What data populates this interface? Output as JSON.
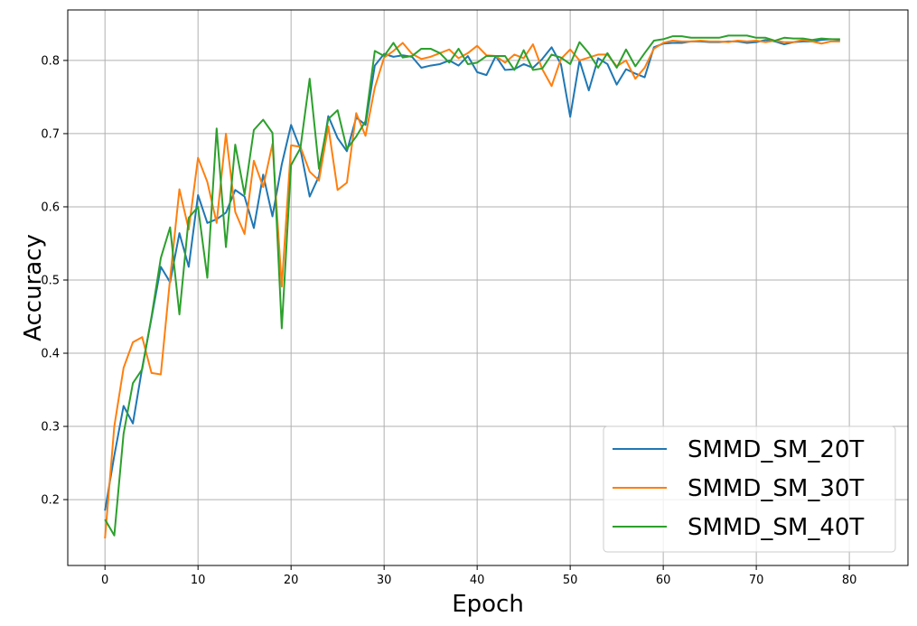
{
  "chart_data": {
    "type": "line",
    "title": "",
    "xlabel": "Epoch",
    "ylabel": "Accuracy",
    "xlim": [
      -4,
      86.3
    ],
    "ylim": [
      0.11,
      0.869
    ],
    "xticks": [
      "0",
      "10",
      "20",
      "30",
      "40",
      "50",
      "60",
      "70",
      "80"
    ],
    "yticks": [
      "0.2",
      "0.3",
      "0.4",
      "0.5",
      "0.6",
      "0.7",
      "0.8"
    ],
    "grid": true,
    "legend_position": "lower-right",
    "x": [
      0,
      1,
      2,
      3,
      4,
      5,
      6,
      7,
      8,
      9,
      10,
      11,
      12,
      13,
      14,
      15,
      16,
      17,
      18,
      19,
      20,
      21,
      22,
      23,
      24,
      25,
      26,
      27,
      28,
      29,
      30,
      31,
      32,
      33,
      34,
      35,
      36,
      37,
      38,
      39,
      40,
      41,
      42,
      43,
      44,
      45,
      46,
      47,
      48,
      49,
      50,
      51,
      52,
      53,
      54,
      55,
      56,
      57,
      58,
      59,
      60,
      61,
      62,
      63,
      64,
      65,
      66,
      67,
      68,
      69,
      70,
      71,
      72,
      73,
      74,
      75,
      76,
      77,
      78,
      79
    ],
    "series": [
      {
        "name": "SMMD_SM_20T",
        "color": "#1f77b4",
        "values": [
          0.185,
          0.26,
          0.328,
          0.304,
          0.38,
          0.448,
          0.518,
          0.497,
          0.564,
          0.518,
          0.616,
          0.578,
          0.583,
          0.592,
          0.623,
          0.614,
          0.571,
          0.644,
          0.587,
          0.658,
          0.712,
          0.679,
          0.614,
          0.642,
          0.724,
          0.694,
          0.676,
          0.722,
          0.712,
          0.793,
          0.809,
          0.805,
          0.807,
          0.805,
          0.79,
          0.793,
          0.795,
          0.8,
          0.793,
          0.806,
          0.784,
          0.78,
          0.806,
          0.787,
          0.788,
          0.795,
          0.79,
          0.802,
          0.818,
          0.795,
          0.723,
          0.8,
          0.759,
          0.803,
          0.795,
          0.767,
          0.788,
          0.782,
          0.777,
          0.818,
          0.823,
          0.824,
          0.824,
          0.826,
          0.826,
          0.825,
          0.825,
          0.826,
          0.826,
          0.824,
          0.825,
          0.828,
          0.826,
          0.822,
          0.825,
          0.826,
          0.826,
          0.828,
          0.829,
          0.828
        ]
      },
      {
        "name": "SMMD_SM_30T",
        "color": "#ff7f0e",
        "values": [
          0.147,
          0.3,
          0.38,
          0.415,
          0.422,
          0.373,
          0.371,
          0.502,
          0.624,
          0.569,
          0.667,
          0.634,
          0.578,
          0.7,
          0.593,
          0.563,
          0.663,
          0.627,
          0.686,
          0.491,
          0.684,
          0.682,
          0.648,
          0.636,
          0.71,
          0.623,
          0.633,
          0.728,
          0.697,
          0.763,
          0.804,
          0.813,
          0.824,
          0.809,
          0.802,
          0.805,
          0.81,
          0.815,
          0.803,
          0.81,
          0.82,
          0.807,
          0.806,
          0.797,
          0.808,
          0.803,
          0.822,
          0.788,
          0.765,
          0.802,
          0.815,
          0.8,
          0.804,
          0.808,
          0.808,
          0.792,
          0.8,
          0.775,
          0.79,
          0.816,
          0.824,
          0.827,
          0.826,
          0.826,
          0.827,
          0.826,
          0.826,
          0.825,
          0.827,
          0.826,
          0.827,
          0.825,
          0.827,
          0.825,
          0.825,
          0.828,
          0.826,
          0.823,
          0.826,
          0.826
        ]
      },
      {
        "name": "SMMD_SM_40T",
        "color": "#2ca02c",
        "values": [
          0.173,
          0.151,
          0.29,
          0.359,
          0.378,
          0.45,
          0.53,
          0.572,
          0.453,
          0.585,
          0.6,
          0.503,
          0.707,
          0.545,
          0.685,
          0.617,
          0.705,
          0.719,
          0.701,
          0.434,
          0.657,
          0.68,
          0.775,
          0.652,
          0.72,
          0.732,
          0.679,
          0.696,
          0.717,
          0.813,
          0.806,
          0.824,
          0.804,
          0.806,
          0.816,
          0.816,
          0.81,
          0.797,
          0.816,
          0.795,
          0.797,
          0.806,
          0.806,
          0.806,
          0.787,
          0.814,
          0.787,
          0.789,
          0.808,
          0.804,
          0.795,
          0.825,
          0.81,
          0.79,
          0.81,
          0.79,
          0.815,
          0.792,
          0.81,
          0.827,
          0.829,
          0.833,
          0.833,
          0.831,
          0.831,
          0.831,
          0.831,
          0.834,
          0.834,
          0.834,
          0.831,
          0.831,
          0.827,
          0.831,
          0.83,
          0.83,
          0.828,
          0.83,
          0.829,
          0.829
        ]
      }
    ]
  }
}
